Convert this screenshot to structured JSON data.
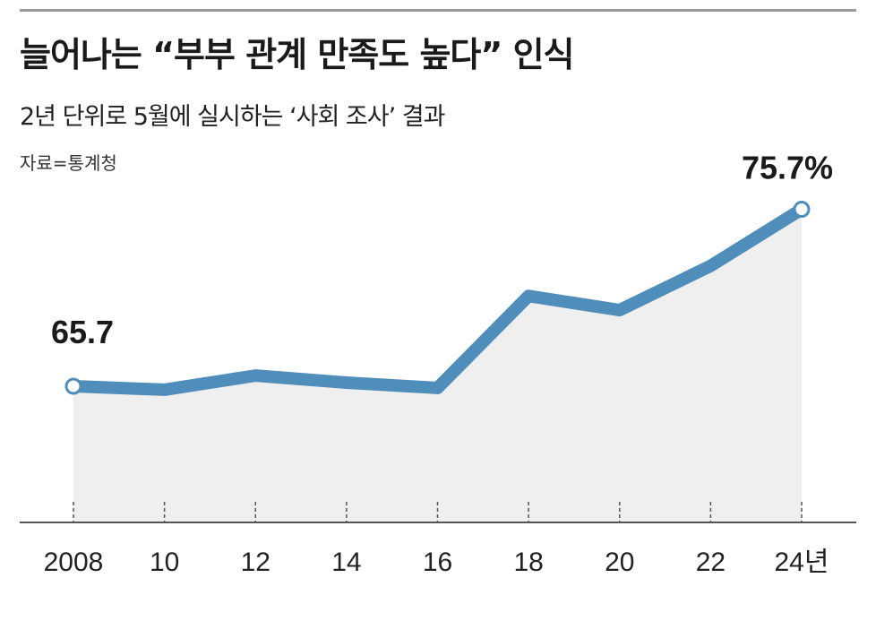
{
  "header": {
    "title": "늘어나는 “부부 관계 만족도 높다” 인식",
    "subtitle": "2년 단위로 5월에 실시하는 ‘사회 조사’ 결과",
    "source": "자료=통계청"
  },
  "colors": {
    "line": "#4f8dbb",
    "area": "#efeff0",
    "axis": "#555555",
    "rule": "#9a9a9a"
  },
  "chart_data": {
    "type": "line",
    "title": "늘어나는 “부부 관계 만족도 높다” 인식",
    "subtitle": "2년 단위로 5월에 실시하는 ‘사회 조사’ 결과",
    "categories": [
      "2008",
      "10",
      "12",
      "14",
      "16",
      "18",
      "20",
      "22",
      "24년"
    ],
    "series": [
      {
        "values": [
          65.7,
          65.5,
          66.3,
          65.9,
          65.6,
          70.8,
          70.0,
          72.5,
          75.7
        ]
      }
    ],
    "data_labels": [
      {
        "index": 0,
        "text": "65.7"
      },
      {
        "index": 8,
        "text": "75.7%"
      }
    ],
    "ylim": [
      58.0,
      77.5
    ],
    "grid": false,
    "area_fill": true
  }
}
